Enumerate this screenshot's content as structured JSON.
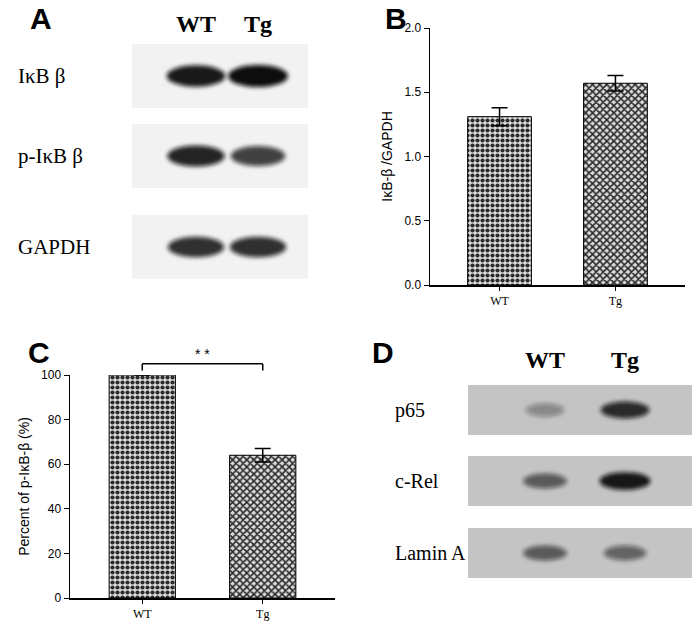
{
  "blots": [
    {
      "panel": "A",
      "lanes": [
        "WT",
        "Tg"
      ],
      "rows": [
        {
          "label": "IκB β",
          "intensity": [
            0.95,
            1.0
          ]
        },
        {
          "label": "p-IκB β",
          "intensity": [
            0.9,
            0.78
          ]
        },
        {
          "label": "GAPDH",
          "intensity": [
            0.85,
            0.85
          ]
        }
      ]
    },
    {
      "panel": "D",
      "lanes": [
        "WT",
        "Tg"
      ],
      "rows": [
        {
          "label": "p65",
          "intensity": [
            0.35,
            0.85
          ]
        },
        {
          "label": "c-Rel",
          "intensity": [
            0.6,
            0.95
          ]
        },
        {
          "label": "Lamin A",
          "intensity": [
            0.6,
            0.55
          ]
        }
      ]
    }
  ],
  "chart_data": [
    {
      "panel": "B",
      "type": "bar",
      "categories": [
        "WT",
        "Tg"
      ],
      "values": [
        1.31,
        1.57
      ],
      "errors": [
        0.07,
        0.06
      ],
      "y_label": "IκB-β /GAPDH",
      "color": "#2b2b2b",
      "ylim": [
        0,
        2.0
      ],
      "yticks": [
        {
          "value": 0,
          "label": "0.0"
        },
        {
          "value": 0.5,
          "label": "0.5"
        },
        {
          "value": 1.0,
          "label": "1.0"
        },
        {
          "value": 1.5,
          "label": "1.5"
        },
        {
          "value": 2.0,
          "label": "2.0"
        }
      ],
      "grid": false
    },
    {
      "panel": "C",
      "type": "bar",
      "categories": [
        "WT",
        "Tg"
      ],
      "values": [
        100,
        64
      ],
      "errors": [
        0,
        3
      ],
      "y_label": "Percent of p-IκB-β (%)",
      "color": "#2b2b2b",
      "ylim": [
        0,
        100
      ],
      "yticks": [
        0,
        20,
        40,
        60,
        80,
        100
      ],
      "grid": false,
      "annotations": [
        {
          "text": "* *",
          "between": [
            "WT",
            "Tg"
          ]
        }
      ]
    }
  ]
}
